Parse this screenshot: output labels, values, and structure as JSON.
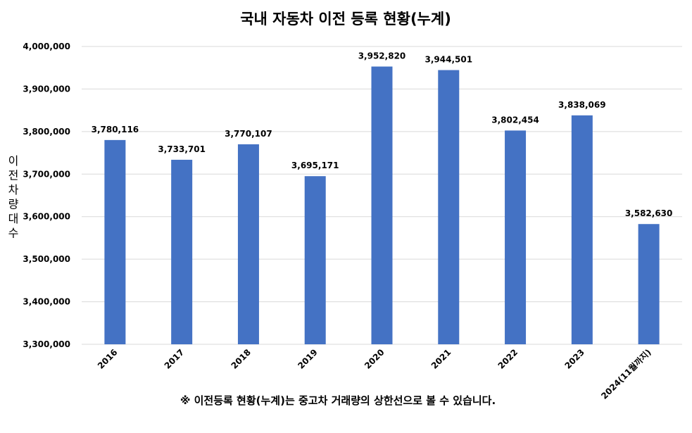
{
  "chart_data": {
    "type": "bar",
    "title": "국내 자동차 이전 등록 현황(누계)",
    "ylabel": "이전 차량 대수",
    "xlabel": "",
    "categories": [
      "2016",
      "2017",
      "2018",
      "2019",
      "2020",
      "2021",
      "2022",
      "2023",
      "2024(11월까지)"
    ],
    "values": [
      3780116,
      3733701,
      3770107,
      3695171,
      3952820,
      3944501,
      3802454,
      3838069,
      3582630
    ],
    "data_labels": [
      "3,780,116",
      "3,733,701",
      "3,770,107",
      "3,695,171",
      "3,952,820",
      "3,944,501",
      "3,802,454",
      "3,838,069",
      "3,582,630"
    ],
    "ylim": [
      3300000,
      4000000
    ],
    "yticks": [
      3300000,
      3400000,
      3500000,
      3600000,
      3700000,
      3800000,
      3900000,
      4000000
    ],
    "ytick_labels": [
      "3,300,000",
      "3,400,000",
      "3,500,000",
      "3,600,000",
      "3,700,000",
      "3,800,000",
      "3,900,000",
      "4,000,000"
    ],
    "grid": true,
    "legend": "none",
    "bar_color": "#4472C4",
    "grid_color": "#D9D9D9",
    "note": "※ 이전등록 현황(누계)는 중고차 거래량의 상한선으로 볼 수 있습니다."
  }
}
